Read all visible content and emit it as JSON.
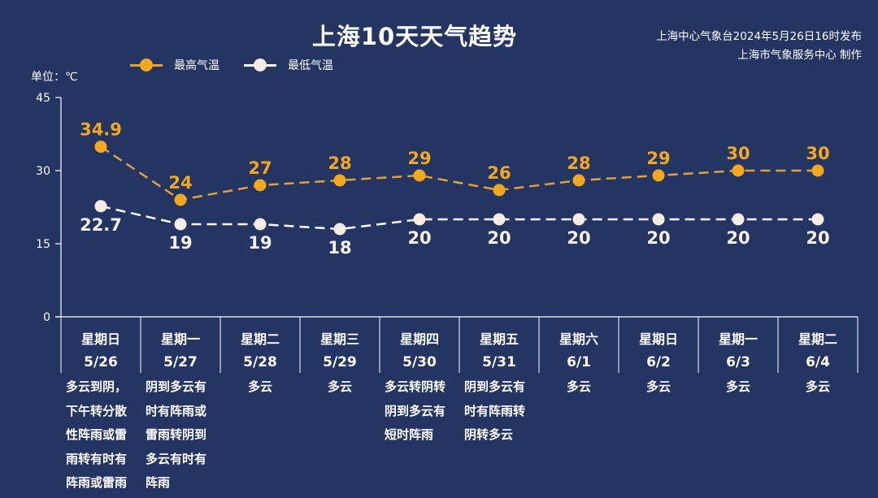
{
  "header": {
    "title": "上海10天天气趋势",
    "credit_line1": "上海中心气象台2024年5月26日16时发布",
    "credit_line2": "上海市气象服务中心 制作"
  },
  "legend": {
    "high_label": "最高气温",
    "low_label": "最低气温",
    "high_color": "#F5A81C",
    "low_color": "#F7EDE6"
  },
  "unit_label": "单位：℃",
  "colors": {
    "background": "#243463",
    "axis": "#FFFFFF",
    "high": "#F5A81C",
    "low": "#F7EDE6"
  },
  "chart_data": {
    "type": "line",
    "title": "上海10天天气趋势",
    "xlabel": "",
    "ylabel": "单位：℃",
    "ylim": [
      0,
      45
    ],
    "yticks": [
      0,
      15,
      30,
      45
    ],
    "grid": false,
    "legend_position": "top-left",
    "categories": [
      "星期日 5/26",
      "星期一 5/27",
      "星期二 5/28",
      "星期三 5/29",
      "星期四 5/30",
      "星期五 5/31",
      "星期六 6/1",
      "星期日 6/2",
      "星期一 6/3",
      "星期二 6/4"
    ],
    "series": [
      {
        "name": "最高气温",
        "values": [
          34.9,
          24,
          27,
          28,
          29,
          26,
          28,
          29,
          30,
          30
        ],
        "color": "#F5A81C",
        "style": "dashed"
      },
      {
        "name": "最低气温",
        "values": [
          22.7,
          19,
          19,
          18,
          20,
          20,
          20,
          20,
          20,
          20
        ],
        "color": "#F7EDE6",
        "style": "dashed"
      }
    ]
  },
  "days": [
    {
      "weekday": "星期日",
      "date": "5/26",
      "desc": [
        "多云到阴，",
        "下午转分散",
        "性阵雨或雷",
        "雨转有时有",
        "阵雨或雷雨"
      ]
    },
    {
      "weekday": "星期一",
      "date": "5/27",
      "desc": [
        "阴到多云有",
        "时有阵雨或",
        "雷雨转阴到",
        "多云有时有",
        "阵雨"
      ]
    },
    {
      "weekday": "星期二",
      "date": "5/28",
      "desc": [
        "多云"
      ]
    },
    {
      "weekday": "星期三",
      "date": "5/29",
      "desc": [
        "多云"
      ]
    },
    {
      "weekday": "星期四",
      "date": "5/30",
      "desc": [
        "多云转阴转",
        "阴到多云有",
        "短时阵雨"
      ]
    },
    {
      "weekday": "星期五",
      "date": "5/31",
      "desc": [
        "阴到多云有",
        "时有阵雨转",
        "阴转多云"
      ]
    },
    {
      "weekday": "星期六",
      "date": "6/1",
      "desc": [
        "多云"
      ]
    },
    {
      "weekday": "星期日",
      "date": "6/2",
      "desc": [
        "多云"
      ]
    },
    {
      "weekday": "星期一",
      "date": "6/3",
      "desc": [
        "多云"
      ]
    },
    {
      "weekday": "星期二",
      "date": "6/4",
      "desc": [
        "多云"
      ]
    }
  ]
}
